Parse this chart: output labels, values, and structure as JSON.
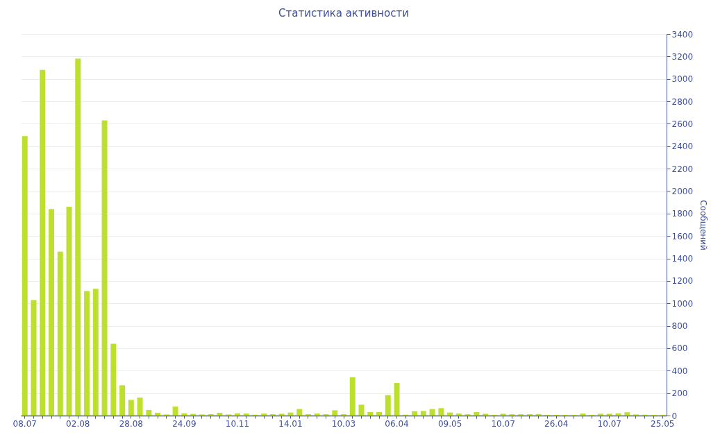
{
  "chart_data": {
    "type": "bar",
    "title": "Статистика активности",
    "y2label": "Сообщений",
    "categories": [
      "08.07",
      null,
      null,
      null,
      null,
      null,
      "02.08",
      null,
      null,
      null,
      null,
      null,
      "28.08",
      null,
      null,
      null,
      null,
      null,
      "24.09",
      null,
      null,
      null,
      null,
      null,
      "10.11",
      null,
      null,
      null,
      null,
      null,
      "14.01",
      null,
      null,
      null,
      null,
      null,
      "10.03",
      null,
      null,
      null,
      null,
      null,
      "06.04",
      null,
      null,
      null,
      null,
      null,
      "09.05",
      null,
      null,
      null,
      null,
      null,
      "10.07",
      null,
      null,
      null,
      null,
      null,
      "26.04",
      null,
      null,
      null,
      null,
      null,
      "10.07",
      null,
      null,
      null,
      null,
      null,
      "25.05"
    ],
    "series": [
      {
        "color": "#bde02e",
        "axis": "y2",
        "values": [
          2490,
          1030,
          3080,
          1840,
          1460,
          1860,
          3180,
          1110,
          1130,
          2630,
          640,
          270,
          140,
          160,
          50,
          25,
          10,
          80,
          20,
          15,
          10,
          12,
          25,
          10,
          20,
          18,
          8,
          18,
          12,
          16,
          27,
          58,
          12,
          18,
          12,
          47,
          12,
          342,
          97,
          31,
          31,
          183,
          290,
          8,
          39,
          41,
          58,
          66,
          27,
          18,
          12,
          31,
          16,
          6,
          16,
          12,
          12,
          12,
          14,
          6,
          6,
          6,
          6,
          18,
          6,
          16,
          16,
          20,
          29,
          10,
          8,
          6,
          6
        ]
      }
    ],
    "y2lim": [
      0,
      3400
    ],
    "y2ticks": [
      0,
      200,
      400,
      600,
      800,
      1000,
      1200,
      1400,
      1600,
      1800,
      2000,
      2200,
      2400,
      2600,
      2800,
      3000,
      3200,
      3400
    ],
    "grid": "y"
  }
}
